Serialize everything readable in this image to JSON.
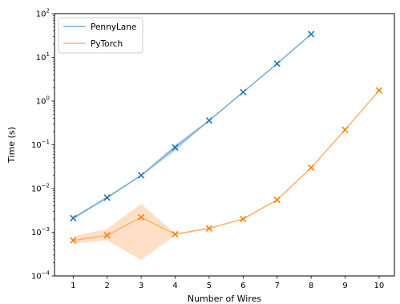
{
  "chart_data": {
    "type": "line",
    "xlabel": "Number of Wires",
    "ylabel": "Time (s)",
    "yscale": "log",
    "ylim": [
      0.0001,
      100
    ],
    "xlim": [
      0.45,
      10.45
    ],
    "x_ticks": [
      1,
      2,
      3,
      4,
      5,
      6,
      7,
      8,
      9,
      10
    ],
    "y_ticks": [
      {
        "value": 0.0001,
        "mantissa": "10",
        "exponent": "−4"
      },
      {
        "value": 0.001,
        "mantissa": "10",
        "exponent": "−3"
      },
      {
        "value": 0.01,
        "mantissa": "10",
        "exponent": "−2"
      },
      {
        "value": 0.1,
        "mantissa": "10",
        "exponent": "−1"
      },
      {
        "value": 1,
        "mantissa": "10",
        "exponent": "0"
      },
      {
        "value": 10,
        "mantissa": "10",
        "exponent": "1"
      },
      {
        "value": 100,
        "mantissa": "10",
        "exponent": "2"
      }
    ],
    "legend_position": "top-left",
    "series": [
      {
        "name": "PennyLane",
        "line_color": "#7aadd4",
        "marker_color": "#1f77b4",
        "band_color": "#aecde6",
        "x": [
          1,
          2,
          3,
          4,
          5,
          6,
          7,
          8
        ],
        "y": [
          0.0021,
          0.0062,
          0.02,
          0.087,
          0.36,
          1.6,
          7.2,
          34
        ],
        "lower": [
          0.00195,
          0.0059,
          0.0192,
          0.072,
          0.345,
          1.55,
          7.0,
          33
        ],
        "upper": [
          0.00225,
          0.0066,
          0.0208,
          0.1,
          0.375,
          1.65,
          7.4,
          35
        ]
      },
      {
        "name": "PyTorch",
        "line_color": "#ffb36b",
        "marker_color": "#ff7f0e",
        "band_color": "#ffd8b8",
        "x": [
          1,
          2,
          3,
          4,
          5,
          6,
          7,
          8,
          9,
          10
        ],
        "y": [
          0.00065,
          0.00085,
          0.0022,
          0.0009,
          0.00122,
          0.002,
          0.0055,
          0.03,
          0.22,
          1.75
        ],
        "lower": [
          0.00055,
          0.00065,
          0.00023,
          0.00085,
          0.00118,
          0.00195,
          0.0053,
          0.029,
          0.215,
          1.7
        ],
        "upper": [
          0.0008,
          0.0012,
          0.0044,
          0.00095,
          0.00128,
          0.0021,
          0.0057,
          0.031,
          0.225,
          1.8
        ]
      }
    ]
  }
}
